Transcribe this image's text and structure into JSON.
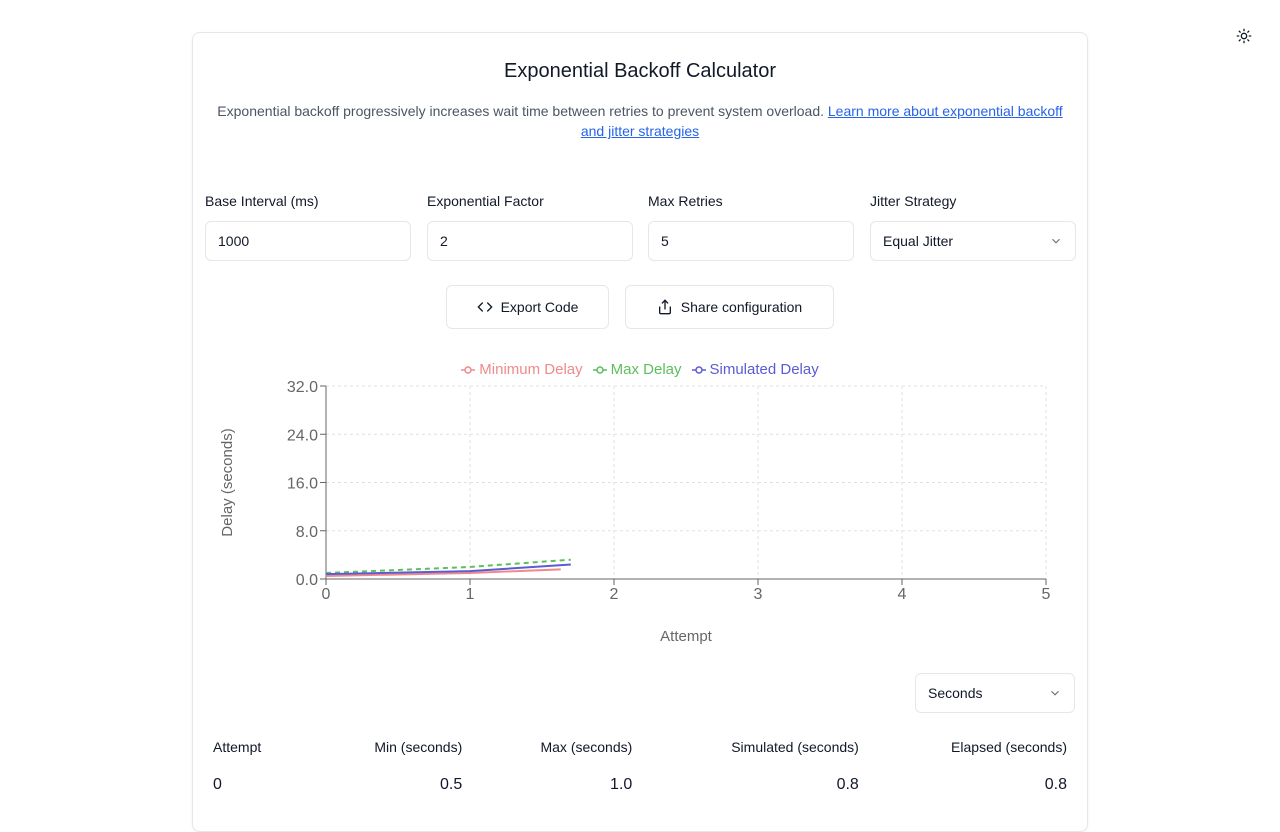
{
  "header": {
    "title": "Exponential Backoff Calculator",
    "description": "Exponential backoff progressively increases wait time between retries to prevent system overload.",
    "learn_more_link": "Learn more about exponential backoff and jitter strategies"
  },
  "theme_toggle_icon": "sun-icon",
  "form": {
    "base_interval": {
      "label": "Base Interval (ms)",
      "value": "1000"
    },
    "factor": {
      "label": "Exponential Factor",
      "value": "2"
    },
    "max_retries": {
      "label": "Max Retries",
      "value": "5"
    },
    "jitter": {
      "label": "Jitter Strategy",
      "value": "Equal Jitter"
    }
  },
  "actions": {
    "export_label": "Export Code",
    "share_label": "Share configuration"
  },
  "colors": {
    "min": "#f08a8a",
    "max": "#5cbf5c",
    "sim": "#5b5bd6",
    "axis": "#666666",
    "grid": "#e0e0e0"
  },
  "chart_data": {
    "type": "line",
    "xlabel": "Attempt",
    "ylabel": "Delay (seconds)",
    "xlim": [
      0,
      5
    ],
    "ylim": [
      0,
      32
    ],
    "x_ticks": [
      "0",
      "1",
      "2",
      "3",
      "4",
      "5"
    ],
    "y_ticks": [
      "0.0",
      "8.0",
      "16.0",
      "24.0",
      "32.0"
    ],
    "grid": true,
    "legend_position": "top-center",
    "series": [
      {
        "name": "Minimum Delay",
        "x": [
          0,
          1,
          1.63
        ],
        "y": [
          0.5,
          1.0,
          1.6
        ]
      },
      {
        "name": "Max Delay",
        "x": [
          0,
          1,
          1.7
        ],
        "y": [
          1.0,
          2.0,
          3.2
        ]
      },
      {
        "name": "Simulated Delay",
        "x": [
          0,
          1,
          1.7
        ],
        "y": [
          0.8,
          1.3,
          2.4
        ]
      }
    ]
  },
  "unit_select": {
    "value": "Seconds"
  },
  "table": {
    "headers": [
      "Attempt",
      "Min (seconds)",
      "Max (seconds)",
      "Simulated (seconds)",
      "Elapsed (seconds)"
    ],
    "rows": [
      [
        "0",
        "0.5",
        "1.0",
        "0.8",
        "0.8"
      ]
    ]
  }
}
